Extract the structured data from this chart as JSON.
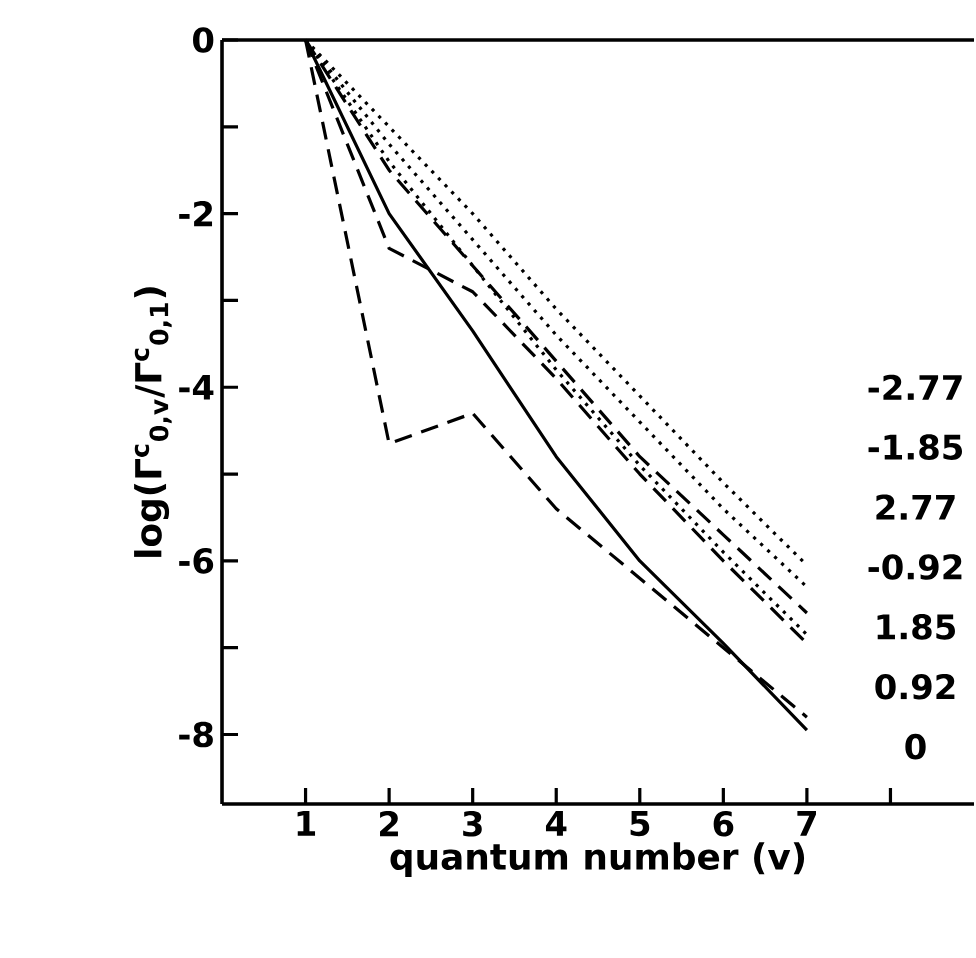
{
  "chart_data": {
    "type": "line",
    "xlabel": "quantum number (v)",
    "ylabel": "log(Γ$^{c}$$_{0,v}$/Γ$^{c}$$_{0,1}$)",
    "x": [
      1,
      2,
      3,
      4,
      5,
      6,
      7
    ],
    "xlim": [
      0,
      9
    ],
    "ylim": [
      -8.8,
      0
    ],
    "xticks": [
      1,
      2,
      3,
      4,
      5,
      6,
      7,
      {
        "value": 8,
        "label": null
      }
    ],
    "yticks": [
      0,
      {
        "value": -1,
        "label": null
      },
      -2,
      {
        "value": -3,
        "label": null
      },
      -4,
      {
        "value": -5,
        "label": null
      },
      -6,
      {
        "value": -7,
        "label": null
      },
      -8
    ],
    "marker": "none",
    "grid": false,
    "legend": false,
    "series": [
      {
        "name": "-2.77",
        "color": "#000000",
        "line_style": "dotted",
        "values": [
          0,
          -1.0,
          -2.0,
          -3.1,
          -4.1,
          -5.1,
          -6.05
        ]
      },
      {
        "name": "-1.85",
        "color": "#000000",
        "line_style": "dotted",
        "values": [
          0,
          -1.2,
          -2.3,
          -3.4,
          -4.4,
          -5.4,
          -6.3
        ]
      },
      {
        "name": "2.77",
        "color": "#000000",
        "line_style": "dashed",
        "values": [
          0,
          -1.5,
          -2.6,
          -3.7,
          -4.8,
          -5.7,
          -6.6
        ]
      },
      {
        "name": "-0.92",
        "color": "#000000",
        "line_style": "dotted",
        "values": [
          0,
          -1.4,
          -2.6,
          -3.8,
          -4.9,
          -5.9,
          -6.85
        ]
      },
      {
        "name": "1.85",
        "color": "#000000",
        "line_style": "dashed",
        "values": [
          0,
          -2.4,
          -2.9,
          -3.9,
          -5.0,
          -6.0,
          -6.95
        ]
      },
      {
        "name": "0.92",
        "color": "#000000",
        "line_style": "dashed",
        "values": [
          0,
          -4.65,
          -4.3,
          -5.4,
          -6.2,
          -7.0,
          -7.8
        ]
      },
      {
        "name": "0",
        "color": "#000000",
        "line_style": "solid",
        "values": [
          0,
          -2.0,
          -3.35,
          -4.8,
          -6.0,
          -6.95,
          -7.95
        ]
      }
    ]
  }
}
